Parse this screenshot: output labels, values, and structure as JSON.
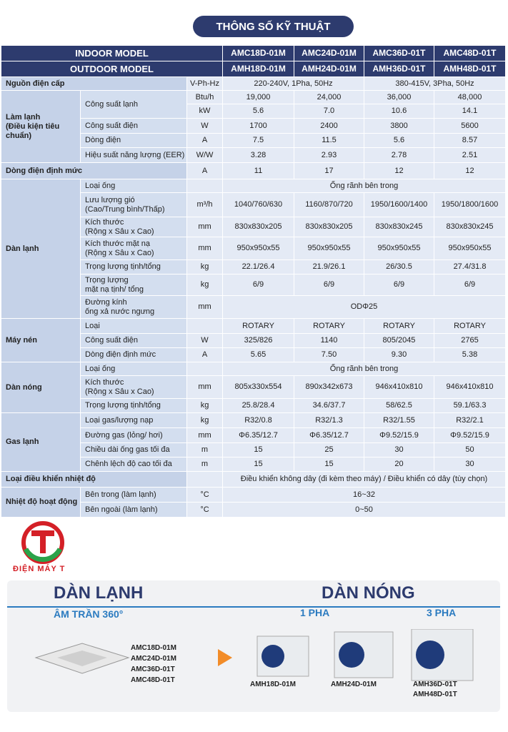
{
  "header": {
    "title": "THÔNG SỐ KỸ THUẬT"
  },
  "table": {
    "indoor_label": "INDOOR MODEL",
    "indoor_models": [
      "AMC18D-01M",
      "AMC24D-01M",
      "AMC36D-01T",
      "AMC48D-01T"
    ],
    "outdoor_label": "OUTDOOR MODEL",
    "outdoor_models": [
      "AMH18D-01M",
      "AMH24D-01M",
      "AMH36D-01T",
      "AMH48D-01T"
    ],
    "sections": [
      {
        "name": "Nguồn điện cấp",
        "lines": [
          {
            "unit": "V-Ph-Hz",
            "values": [
              "220-240V, 1Pha, 50Hz",
              "380-415V, 3Pha, 50Hz"
            ]
          }
        ]
      },
      {
        "name": "Làm lạnh\n(Điều kiện tiêu\nchuẩn)",
        "items": [
          {
            "label": "Công suất lạnh",
            "lines": [
              {
                "unit": "Btu/h",
                "values": [
                  "19,000",
                  "24,000",
                  "36,000",
                  "48,000"
                ]
              },
              {
                "unit": "kW",
                "values": [
                  "5.6",
                  "7.0",
                  "10.6",
                  "14.1"
                ]
              }
            ]
          },
          {
            "label": "Công suất điện",
            "lines": [
              {
                "unit": "W",
                "values": [
                  "1700",
                  "2400",
                  "3800",
                  "5600"
                ]
              }
            ]
          },
          {
            "label": "Dòng điện",
            "lines": [
              {
                "unit": "A",
                "values": [
                  "7.5",
                  "11.5",
                  "5.6",
                  "8.57"
                ]
              }
            ]
          },
          {
            "label": "Hiệu suất năng lượng (EER)",
            "lines": [
              {
                "unit": "W/W",
                "values": [
                  "3.28",
                  "2.93",
                  "2.78",
                  "2.51"
                ]
              }
            ]
          }
        ]
      },
      {
        "name": "Dòng điện định mức",
        "lines": [
          {
            "unit": "A",
            "values": [
              "11",
              "17",
              "12",
              "12"
            ]
          }
        ]
      },
      {
        "name": "Dàn lạnh",
        "items": [
          {
            "label": "Loại ống",
            "lines": [
              {
                "values": [
                  "Ống rãnh bên trong"
                ]
              }
            ]
          },
          {
            "label": "Lưu lượng gió\n(Cao/Trung bình/Thấp)",
            "lines": [
              {
                "unit": "m³/h",
                "values": [
                  "1040/760/630",
                  "1160/870/720",
                  "1950/1600/1400",
                  "1950/1800/1600"
                ]
              }
            ]
          },
          {
            "label": "Kích thước\n(Rộng x Sâu x Cao)",
            "lines": [
              {
                "unit": "mm",
                "values": [
                  "830x830x205",
                  "830x830x205",
                  "830x830x245",
                  "830x830x245"
                ]
              }
            ]
          },
          {
            "label": "Kích thước mặt nạ\n(Rộng x Sâu x Cao)",
            "lines": [
              {
                "unit": "mm",
                "values": [
                  "950x950x55",
                  "950x950x55",
                  "950x950x55",
                  "950x950x55"
                ]
              }
            ]
          },
          {
            "label": "Trọng lượng tịnh/tổng",
            "lines": [
              {
                "unit": "kg",
                "values": [
                  "22.1/26.4",
                  "21.9/26.1",
                  "26/30.5",
                  "27.4/31.8"
                ]
              }
            ]
          },
          {
            "label": "Trọng lượng\nmặt nạ tịnh/ tổng",
            "lines": [
              {
                "unit": "kg",
                "values": [
                  "6/9",
                  "6/9",
                  "6/9",
                  "6/9"
                ]
              }
            ]
          },
          {
            "label": "Đường kính\nống xả nước ngưng",
            "lines": [
              {
                "unit": "mm",
                "values": [
                  "ODΦ25"
                ]
              }
            ]
          }
        ]
      },
      {
        "name": "Máy nén",
        "items": [
          {
            "label": "Loại",
            "lines": [
              {
                "values": [
                  "ROTARY",
                  "ROTARY",
                  "ROTARY",
                  "ROTARY"
                ]
              }
            ]
          },
          {
            "label": "Công suất điện",
            "lines": [
              {
                "unit": "W",
                "values": [
                  "325/826",
                  "1140",
                  "805/2045",
                  "2765"
                ]
              }
            ]
          },
          {
            "label": "Dòng điện định mức",
            "lines": [
              {
                "unit": "A",
                "values": [
                  "5.65",
                  "7.50",
                  "9.30",
                  "5.38"
                ]
              }
            ]
          }
        ]
      },
      {
        "name": "Dàn nóng",
        "items": [
          {
            "label": "Loại ống",
            "lines": [
              {
                "values": [
                  "Ống rãnh bên trong"
                ]
              }
            ]
          },
          {
            "label": "Kích thước\n(Rộng x Sâu x Cao)",
            "lines": [
              {
                "unit": "mm",
                "values": [
                  "805x330x554",
                  "890x342x673",
                  "946x410x810",
                  "946x410x810"
                ]
              }
            ]
          },
          {
            "label": "Trọng lượng tịnh/tổng",
            "lines": [
              {
                "unit": "kg",
                "values": [
                  "25.8/28.4",
                  "34.6/37.7",
                  "58/62.5",
                  "59.1/63.3"
                ]
              }
            ]
          }
        ]
      },
      {
        "name": "Gas lạnh",
        "items": [
          {
            "label": "Loại gas/lượng nạp",
            "lines": [
              {
                "unit": "kg",
                "values": [
                  "R32/0.8",
                  "R32/1.3",
                  "R32/1.55",
                  "R32/2.1"
                ]
              }
            ]
          },
          {
            "label": "Đường gas (lỏng/ hơi)",
            "lines": [
              {
                "unit": "mm",
                "values": [
                  "Φ6.35/12.7",
                  "Φ6.35/12.7",
                  "Φ9.52/15.9",
                  "Φ9.52/15.9"
                ]
              }
            ]
          },
          {
            "label": "Chiều dài ống gas tối đa",
            "lines": [
              {
                "unit": "m",
                "values": [
                  "15",
                  "25",
                  "30",
                  "50"
                ]
              }
            ]
          },
          {
            "label": "Chênh lệch độ cao tối đa",
            "lines": [
              {
                "unit": "m",
                "values": [
                  "15",
                  "15",
                  "20",
                  "30"
                ]
              }
            ]
          }
        ]
      },
      {
        "name": "Loại điều khiển nhiệt độ",
        "lines": [
          {
            "values": [
              "Điều khiển không dây (đi kèm theo máy) / Điều khiển có dây (tùy chọn)"
            ]
          }
        ]
      },
      {
        "name": "Nhiệt độ hoạt động",
        "items": [
          {
            "label": "Bên trong (làm lạnh)",
            "lines": [
              {
                "unit": "°C",
                "values": [
                  "16~32"
                ]
              }
            ]
          },
          {
            "label": "Bên ngoài (làm lạnh)",
            "lines": [
              {
                "unit": "°C",
                "values": [
                  "0~50"
                ]
              }
            ]
          }
        ]
      }
    ]
  },
  "logo": {
    "text": "ĐIỆN MÁY T"
  },
  "banner": {
    "indoor_title": "DÀN LẠNH",
    "indoor_subtitle": "ÂM TRẦN 360°",
    "indoor_models": [
      "AMC18D-01M",
      "AMC24D-01M",
      "AMC36D-01T",
      "AMC48D-01T"
    ],
    "outdoor_title": "DÀN NÓNG",
    "one_phase": "1 PHA",
    "three_phase": "3 PHA",
    "outdoor_models": [
      "AMH18D-01M",
      "AMH24D-01M",
      "AMH36D-01T\nAMH48D-01T"
    ]
  }
}
